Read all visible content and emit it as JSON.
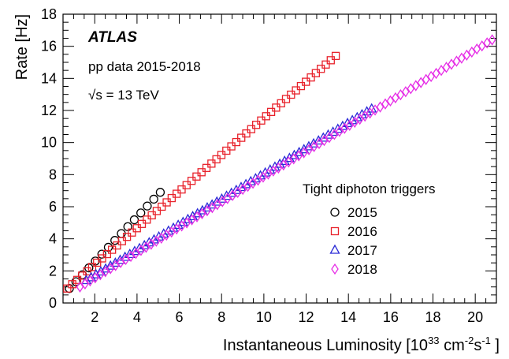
{
  "chart_data": {
    "type": "scatter",
    "title": "",
    "xlabel": {
      "prefix": "Instantaneous Luminosity [10",
      "exp": "33",
      "mid": " cm",
      "exp2": "-2",
      "mid2": "s",
      "exp3": "-1",
      "suffix": " ]"
    },
    "ylabel": "Rate [Hz]",
    "xlim": [
      0.5,
      21.0
    ],
    "ylim": [
      0,
      18
    ],
    "x_ticks": [
      2,
      4,
      6,
      8,
      10,
      12,
      14,
      16,
      18,
      20
    ],
    "x_tick_labels": [
      "2",
      "4",
      "6",
      "8",
      "10",
      "12",
      "14",
      "16",
      "18",
      "20"
    ],
    "y_ticks": [
      0,
      2,
      4,
      6,
      8,
      10,
      12,
      14,
      16,
      18
    ],
    "y_tick_labels": [
      "0",
      "2",
      "4",
      "6",
      "8",
      "10",
      "12",
      "14",
      "16",
      "18"
    ],
    "x_minor_step": 0.5,
    "y_minor_step": 0.5,
    "grid": false,
    "legend_placement": "bottom-right",
    "annotations": {
      "atlas": "ATLAS",
      "data": "pp data 2015-2018",
      "energy_root": "√s",
      "energy_value": " = 13 TeV"
    },
    "legend_title": "Tight diphoton triggers",
    "series": [
      {
        "name": "2015",
        "marker": "circle",
        "color": "#000000",
        "x_start": 0.8,
        "x_end": 5.1,
        "n": 15,
        "y_start": 0.9,
        "y_end": 6.9
      },
      {
        "name": "2016",
        "marker": "square",
        "color": "#e8222b",
        "x_start": 0.7,
        "x_end": 13.4,
        "n": 55,
        "y_start": 0.9,
        "y_end": 15.4
      },
      {
        "name": "2017",
        "marker": "triangle",
        "color": "#2a2ad6",
        "x_start": 1.6,
        "x_end": 15.1,
        "n": 60,
        "y_start": 1.4,
        "y_end": 12.1
      },
      {
        "name": "2018",
        "marker": "diamond",
        "color": "#e62ee6",
        "x_start": 1.3,
        "x_end": 20.8,
        "n": 82,
        "y_start": 1.0,
        "y_end": 16.4
      }
    ]
  }
}
